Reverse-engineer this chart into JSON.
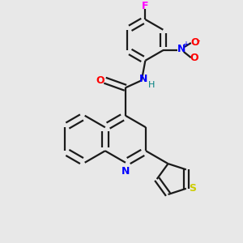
{
  "background_color": "#e8e8e8",
  "bond_color": "#1a1a1a",
  "atom_colors": {
    "N": "#0000ff",
    "O": "#ff0000",
    "S": "#cccc00",
    "F": "#ff00ff",
    "H": "#008080",
    "C": "#1a1a1a"
  },
  "lw": 1.6
}
